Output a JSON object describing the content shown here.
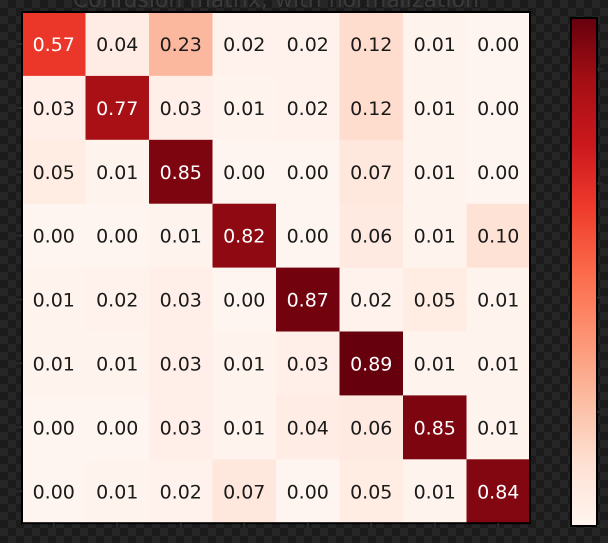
{
  "chart_data": {
    "type": "heatmap",
    "title": "Confusion matrix, with normalization",
    "matrix": [
      [
        0.57,
        0.04,
        0.23,
        0.02,
        0.02,
        0.12,
        0.01,
        0.0
      ],
      [
        0.03,
        0.77,
        0.03,
        0.01,
        0.02,
        0.12,
        0.01,
        0.0
      ],
      [
        0.05,
        0.01,
        0.85,
        0.0,
        0.0,
        0.07,
        0.01,
        0.0
      ],
      [
        0.0,
        0.0,
        0.01,
        0.82,
        0.0,
        0.06,
        0.01,
        0.1
      ],
      [
        0.01,
        0.02,
        0.03,
        0.0,
        0.87,
        0.02,
        0.05,
        0.01
      ],
      [
        0.01,
        0.01,
        0.03,
        0.01,
        0.03,
        0.89,
        0.01,
        0.01
      ],
      [
        0.0,
        0.0,
        0.03,
        0.01,
        0.04,
        0.06,
        0.85,
        0.01
      ],
      [
        0.0,
        0.01,
        0.02,
        0.07,
        0.0,
        0.05,
        0.01,
        0.84
      ]
    ],
    "value_format": "2-decimal",
    "colormap": "Reds",
    "colormap_stops": [
      "#fff5f0",
      "#fee0d2",
      "#fcbba1",
      "#fc9272",
      "#fb6a4a",
      "#ef3b2c",
      "#cb181d",
      "#a50f15",
      "#67000d"
    ],
    "color_range": [
      0,
      0.89
    ],
    "colorbar": true,
    "grid": false,
    "text_color_dark": "#1a1a1a",
    "text_color_light": "#ffffff"
  }
}
